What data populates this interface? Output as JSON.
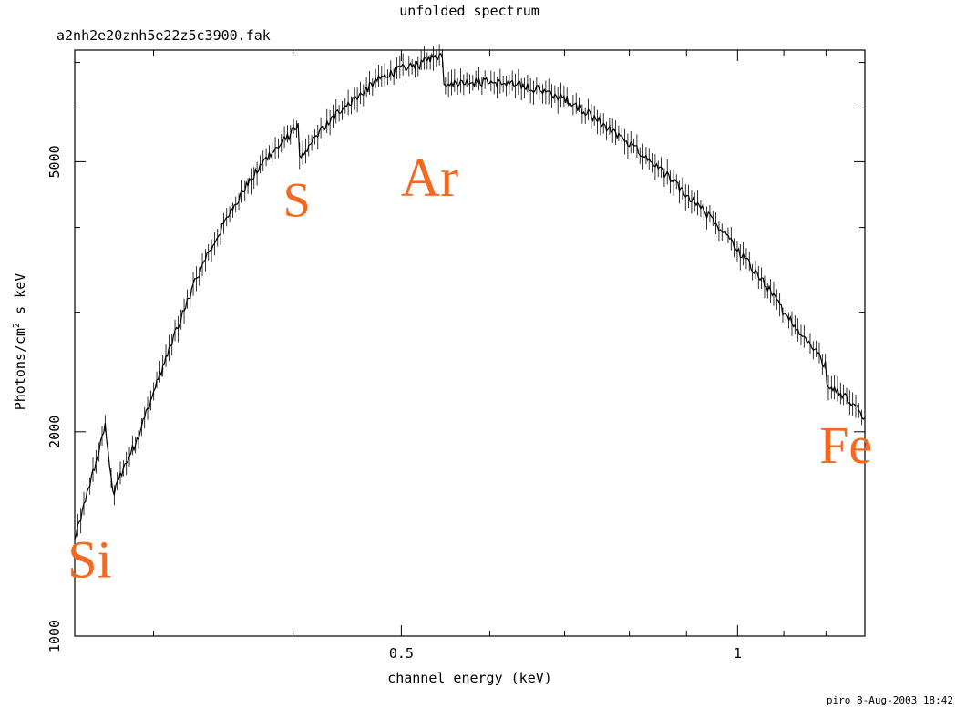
{
  "chart_data": {
    "type": "line",
    "title": "unfolded spectrum",
    "subtitle": "a2nh2e20znh5e22z5c3900.fak",
    "xlabel": "channel energy (keV)",
    "ylabel": "Photons/cm",
    "ylabel_sup": "2",
    "ylabel_suffix": " s keV",
    "xscale": "log",
    "yscale": "log",
    "xlim": [
      0.255,
      1.3
    ],
    "ylim": [
      1000,
      7300
    ],
    "x_tick_labels": [
      {
        "value": 0.5,
        "label": "0.5"
      },
      {
        "value": 1,
        "label": "1"
      }
    ],
    "y_tick_labels": [
      {
        "value": 1000,
        "label": "1000"
      },
      {
        "value": 2000,
        "label": "2000"
      },
      {
        "value": 5000,
        "label": "5000"
      }
    ],
    "grid": false,
    "series": [
      {
        "line_color": "#000000",
        "x": [
          0.255,
          0.26,
          0.265,
          0.27,
          0.2715,
          0.273,
          0.2745,
          0.276,
          0.28,
          0.29,
          0.3,
          0.31,
          0.32,
          0.33,
          0.34,
          0.35,
          0.36,
          0.37,
          0.38,
          0.39,
          0.4,
          0.405,
          0.4055,
          0.41,
          0.42,
          0.44,
          0.46,
          0.48,
          0.5,
          0.52,
          0.53,
          0.545,
          0.5455,
          0.56,
          0.6,
          0.65,
          0.7,
          0.75,
          0.8,
          0.85,
          0.9,
          0.95,
          1.0,
          1.05,
          1.1,
          1.15,
          1.2,
          1.2005,
          1.25,
          1.3
        ],
        "y": [
          1380,
          1560,
          1750,
          1960,
          2040,
          1900,
          1720,
          1610,
          1720,
          1950,
          2280,
          2650,
          3050,
          3450,
          3800,
          4150,
          4500,
          4800,
          5100,
          5300,
          5550,
          5650,
          5000,
          5150,
          5450,
          5950,
          6300,
          6650,
          6850,
          6950,
          7100,
          7200,
          6550,
          6550,
          6550,
          6450,
          6200,
          5750,
          5300,
          4900,
          4450,
          4100,
          3700,
          3350,
          3000,
          2750,
          2500,
          2370,
          2250,
          2100
        ]
      }
    ]
  },
  "annotations": [
    {
      "text": "Si",
      "x": 0.263,
      "y": 1220
    },
    {
      "text": "S",
      "x": 0.403,
      "y": 4150
    },
    {
      "text": "Ar",
      "x": 0.53,
      "y": 4450
    },
    {
      "text": "Fe",
      "x": 1.25,
      "y": 1800
    }
  ],
  "footer": "piro  8-Aug-2003 18:42"
}
